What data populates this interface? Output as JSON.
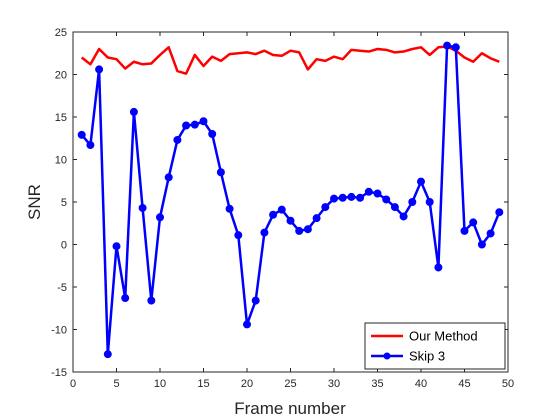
{
  "chart_data": {
    "type": "line",
    "title": "",
    "xlabel": "Frame number",
    "ylabel": "SNR",
    "xlim": [
      0,
      50
    ],
    "ylim": [
      -15,
      25
    ],
    "xticks": [
      0,
      5,
      10,
      15,
      20,
      25,
      30,
      35,
      40,
      45,
      50
    ],
    "yticks": [
      -15,
      -10,
      -5,
      0,
      5,
      10,
      15,
      20,
      25
    ],
    "grid": false,
    "legend_position": "bottom-right",
    "series": [
      {
        "name": "Our Method",
        "color": "#ff0000",
        "marker": "none",
        "x": [
          1,
          2,
          3,
          4,
          5,
          6,
          7,
          8,
          9,
          10,
          11,
          12,
          13,
          14,
          15,
          16,
          17,
          18,
          19,
          20,
          21,
          22,
          23,
          24,
          25,
          26,
          27,
          28,
          29,
          30,
          31,
          32,
          33,
          34,
          35,
          36,
          37,
          38,
          39,
          40,
          41,
          42,
          43,
          44,
          45,
          46,
          47,
          48,
          49
        ],
        "values": [
          22.0,
          21.2,
          23.0,
          22.0,
          21.8,
          20.7,
          21.5,
          21.2,
          21.3,
          22.3,
          23.2,
          20.4,
          20.1,
          22.3,
          21.0,
          22.1,
          21.6,
          22.4,
          22.5,
          22.6,
          22.4,
          22.8,
          22.3,
          22.2,
          22.8,
          22.6,
          20.6,
          21.8,
          21.6,
          22.1,
          21.8,
          22.9,
          22.8,
          22.7,
          23.0,
          22.9,
          22.6,
          22.7,
          23.0,
          23.2,
          22.3,
          23.2,
          23.3,
          22.8,
          22.0,
          21.5,
          22.5,
          21.9,
          21.5
        ]
      },
      {
        "name": "Skip 3",
        "color": "#0000ff",
        "marker": "circle",
        "x": [
          1,
          2,
          3,
          4,
          5,
          6,
          7,
          8,
          9,
          10,
          11,
          12,
          13,
          14,
          15,
          16,
          17,
          18,
          19,
          20,
          21,
          22,
          23,
          24,
          25,
          26,
          27,
          28,
          29,
          30,
          31,
          32,
          33,
          34,
          35,
          36,
          37,
          38,
          39,
          40,
          41,
          42,
          43,
          44,
          45,
          46,
          47,
          48,
          49
        ],
        "values": [
          12.9,
          11.7,
          20.6,
          -12.9,
          -0.2,
          -6.3,
          15.6,
          4.3,
          -6.6,
          3.2,
          7.9,
          12.3,
          14.0,
          14.1,
          14.5,
          13.0,
          8.5,
          4.2,
          1.1,
          -9.4,
          -6.6,
          1.4,
          3.5,
          4.1,
          2.8,
          1.6,
          1.8,
          3.1,
          4.4,
          5.4,
          5.5,
          5.6,
          5.5,
          6.2,
          6.0,
          5.3,
          4.4,
          3.3,
          5.0,
          7.4,
          5.0,
          -2.7,
          23.4,
          23.2,
          1.6,
          2.6,
          0.0,
          1.3,
          3.8
        ]
      }
    ]
  }
}
